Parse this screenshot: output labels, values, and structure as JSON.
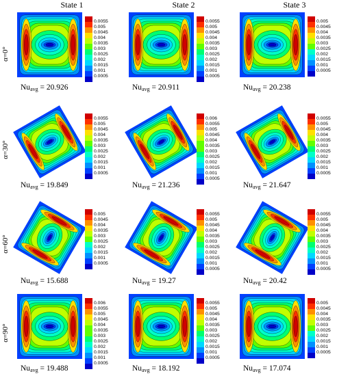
{
  "column_headers": [
    "State 1",
    "State 2",
    "State 3"
  ],
  "row_labels": [
    "α=0°",
    "α=30°",
    "α=60°",
    "α=90°"
  ],
  "nu_prefix": "Nu",
  "nu_subscript": "avg",
  "nu_separator": " = ",
  "colormap": [
    "#0000c8",
    "#0040ff",
    "#0090ff",
    "#00d8ff",
    "#00ffc8",
    "#00ff70",
    "#60ff00",
    "#c0ff00",
    "#ffe000",
    "#ff9000",
    "#ff3000",
    "#d00000"
  ],
  "rows": [
    {
      "angle_deg": 0,
      "cells": [
        {
          "nu_value": "20.926",
          "legend_ticks": [
            "0.0055",
            "0.005",
            "0.0045",
            "0.004",
            "0.0035",
            "0.003",
            "0.0025",
            "0.002",
            "0.0015",
            "0.001",
            "0.0005"
          ]
        },
        {
          "nu_value": "20.911",
          "legend_ticks": [
            "0.0055",
            "0.005",
            "0.0045",
            "0.004",
            "0.0035",
            "0.003",
            "0.0025",
            "0.002",
            "0.0015",
            "0.001",
            "0.0005"
          ]
        },
        {
          "nu_value": "20.238",
          "legend_ticks": [
            "0.005",
            "0.0045",
            "0.004",
            "0.0035",
            "0.003",
            "0.0025",
            "0.002",
            "0.0015",
            "0.001",
            "0.0005"
          ]
        }
      ]
    },
    {
      "angle_deg": 30,
      "cells": [
        {
          "nu_value": "19.849",
          "legend_ticks": [
            "0.0055",
            "0.005",
            "0.0045",
            "0.004",
            "0.0035",
            "0.003",
            "0.0025",
            "0.002",
            "0.0015",
            "0.001",
            "0.0005"
          ]
        },
        {
          "nu_value": "21.236",
          "legend_ticks": [
            "0.006",
            "0.0055",
            "0.005",
            "0.0045",
            "0.004",
            "0.0035",
            "0.003",
            "0.0025",
            "0.002",
            "0.0015",
            "0.001",
            "0.0005"
          ]
        },
        {
          "nu_value": "21.647",
          "legend_ticks": [
            "0.0055",
            "0.005",
            "0.0045",
            "0.004",
            "0.0035",
            "0.003",
            "0.0025",
            "0.002",
            "0.0015",
            "0.001",
            "0.0005"
          ]
        }
      ]
    },
    {
      "angle_deg": 60,
      "cells": [
        {
          "nu_value": "15.688",
          "legend_ticks": [
            "0.005",
            "0.0045",
            "0.004",
            "0.0035",
            "0.003",
            "0.0025",
            "0.002",
            "0.0015",
            "0.001",
            "0.0005"
          ]
        },
        {
          "nu_value": "19.27",
          "legend_ticks": [
            "0.0055",
            "0.005",
            "0.0045",
            "0.004",
            "0.0035",
            "0.003",
            "0.0025",
            "0.002",
            "0.0015",
            "0.001",
            "0.0005"
          ]
        },
        {
          "nu_value": "20.42",
          "legend_ticks": [
            "0.0055",
            "0.005",
            "0.0045",
            "0.004",
            "0.0035",
            "0.003",
            "0.0025",
            "0.002",
            "0.0015",
            "0.001",
            "0.0005"
          ]
        }
      ]
    },
    {
      "angle_deg": 90,
      "cells": [
        {
          "nu_value": "19.488",
          "legend_ticks": [
            "0.006",
            "0.0055",
            "0.005",
            "0.0045",
            "0.004",
            "0.0035",
            "0.003",
            "0.0025",
            "0.002",
            "0.0015",
            "0.001",
            "0.0005"
          ]
        },
        {
          "nu_value": "18.192",
          "legend_ticks": [
            "0.0055",
            "0.005",
            "0.0045",
            "0.004",
            "0.0035",
            "0.003",
            "0.0025",
            "0.002",
            "0.0015",
            "0.001",
            "0.0005"
          ]
        },
        {
          "nu_value": "17.074",
          "legend_ticks": [
            "0.005",
            "0.0045",
            "0.004",
            "0.0035",
            "0.003",
            "0.0025",
            "0.002",
            "0.0015",
            "0.001",
            "0.0005"
          ]
        }
      ]
    }
  ]
}
